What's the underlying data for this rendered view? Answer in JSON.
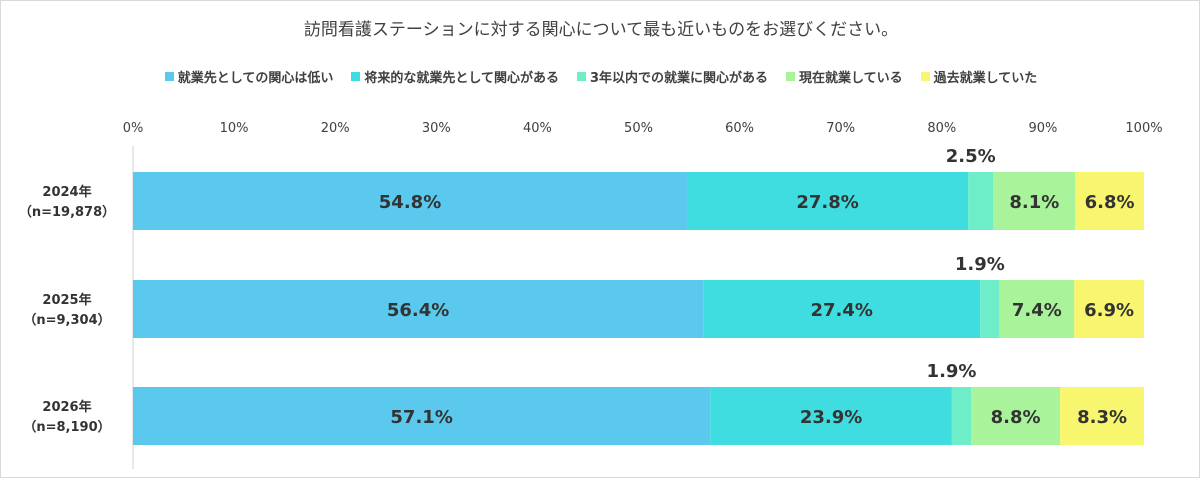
{
  "chart_data": {
    "type": "bar",
    "orientation": "horizontal-stacked",
    "title": "訪問看護ステーションに対する関心について最も近いものをお選びください。",
    "legend_position": "top",
    "xlim": [
      0,
      100
    ],
    "x_tick_labels": [
      "0%",
      "10%",
      "20%",
      "30%",
      "40%",
      "50%",
      "60%",
      "70%",
      "80%",
      "90%",
      "100%"
    ],
    "categories": [
      [
        "2024年",
        "（n=19,878）"
      ],
      [
        "2025年",
        "（n=9,304）"
      ],
      [
        "2026年",
        "（n=8,190）"
      ]
    ],
    "series": [
      {
        "name": "就業先としての関心は低い",
        "color": "#5bc9ee",
        "values": [
          54.8,
          56.4,
          57.1
        ],
        "labels": [
          "54.8%",
          "56.4%",
          "57.1%"
        ],
        "label_placement": "inside"
      },
      {
        "name": "将来的な就業先として関心がある",
        "color": "#3fdde0",
        "values": [
          27.8,
          27.4,
          23.9
        ],
        "labels": [
          "27.8%",
          "27.4%",
          "23.9%"
        ],
        "label_placement": "inside"
      },
      {
        "name": "3年以内での就業に関心がある",
        "color": "#6deec9",
        "values": [
          2.5,
          1.9,
          1.9
        ],
        "labels": [
          "2.5%",
          "1.9%",
          "1.9%"
        ],
        "label_placement": "above"
      },
      {
        "name": "現在就業している",
        "color": "#a9f49b",
        "values": [
          8.1,
          7.4,
          8.8
        ],
        "labels": [
          "8.1%",
          "7.4%",
          "8.8%"
        ],
        "label_placement": "inside"
      },
      {
        "name": "過去就業していた",
        "color": "#f8f56e",
        "values": [
          6.8,
          6.9,
          8.3
        ],
        "labels": [
          "6.8%",
          "6.9%",
          "8.3%"
        ],
        "label_placement": "inside"
      }
    ]
  }
}
